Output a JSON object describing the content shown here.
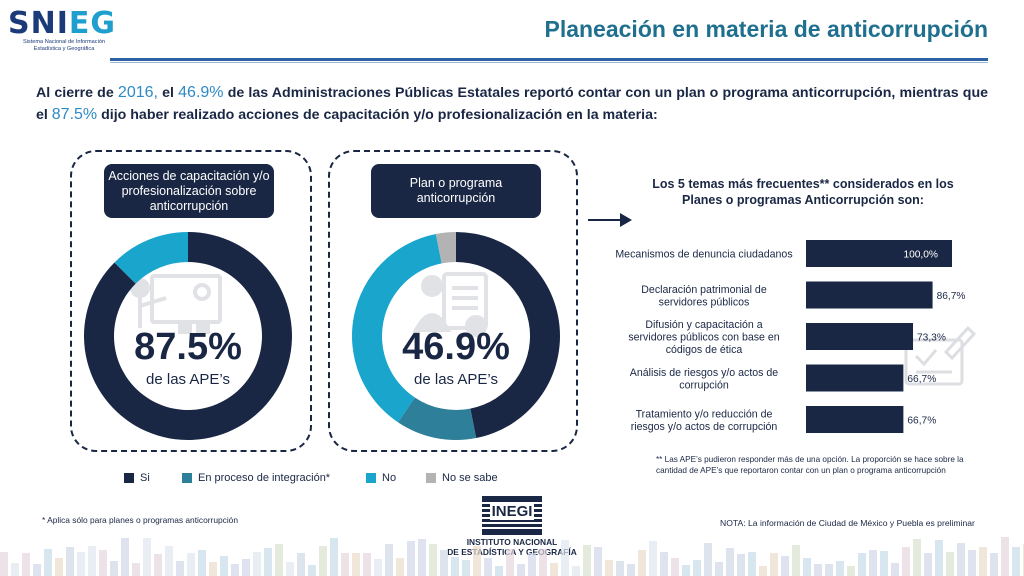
{
  "header": {
    "logo_main": "SNI",
    "logo_accent": "EG",
    "logo_sub": "Sistema Nacional de Información Estadística y Geográfica",
    "title": "Planeación en materia de anticorrupción"
  },
  "intro": {
    "p1": "Al cierre de ",
    "year": "2016,",
    "p2": " el ",
    "pct_plan": "46.9%",
    "p3": " de las Administraciones Públicas Estatales reportó contar con un plan o programa anticorrupción, mientras que el ",
    "pct_cap": "87.5%",
    "p4": " dijo haber realizado acciones de capacitación y/o profesionalización en la materia:"
  },
  "colors": {
    "si": "#1a2744",
    "proceso": "#2e7f99",
    "no": "#19a5cc",
    "no_sabe": "#b3b3b3",
    "bar": "#1a2744"
  },
  "donuts": {
    "capacitacion": {
      "caption": "Acciones de capacitación y/o profesionalización sobre anticorrupción",
      "value_label": "87.5%",
      "sub_label": "de las APE’s",
      "icon": "presentation-icon"
    },
    "plan": {
      "caption": "Plan o programa anticorrupción",
      "value_label": "46.9%",
      "sub_label": "de las APE’s",
      "icon": "document-person-icon"
    }
  },
  "legend": {
    "si": "Si",
    "proceso": "En proceso de integración*",
    "no": "No",
    "no_sabe": "No se sabe"
  },
  "footnote_left": "* Aplica sólo para planes o programas anticorrupción",
  "bar_section": {
    "title": "Los 5 temas más frecuentes** considerados en los Planes o programas Anticorrupción son:",
    "footnote": "** Las APE’s pudieron responder más de una opción. La proporción se hace sobre la cantidad de APE’s que reportaron contar con un plan o programa anticorrupción",
    "icon": "clipboard-pencil-icon"
  },
  "nota": "NOTA: La información de Ciudad de México y Puebla es preliminar",
  "inegi": {
    "logo": "INEGI",
    "line1": "INSTITUTO NACIONAL",
    "line2": "DE ESTADÍSTICA Y GEOGRAFÍA"
  },
  "chart_data": [
    {
      "type": "pie",
      "subtype": "donut",
      "title": "Acciones de capacitación y/o profesionalización sobre anticorrupción",
      "labels": [
        "Si",
        "No"
      ],
      "values": [
        87.5,
        12.5
      ],
      "colors": [
        "#1a2744",
        "#19a5cc"
      ]
    },
    {
      "type": "pie",
      "subtype": "donut",
      "title": "Plan o programa anticorrupción",
      "labels": [
        "Si",
        "En proceso de integración*",
        "No",
        "No se sabe"
      ],
      "values": [
        46.9,
        12.5,
        37.5,
        3.1
      ],
      "colors": [
        "#1a2744",
        "#2e7f99",
        "#19a5cc",
        "#b3b3b3"
      ]
    },
    {
      "type": "bar",
      "orientation": "horizontal",
      "title": "Los 5 temas más frecuentes** considerados en los Planes o programas Anticorrupción son:",
      "categories": [
        "Mecanismos de denuncia ciudadanos",
        "Declaración patrimonial de servidores públicos",
        "Difusión y capacitación a servidores públicos con base en códigos de ética",
        "Análisis de riesgos y/o actos de corrupción",
        "Tratamiento y/o reducción de riesgos y/o actos de corrupción"
      ],
      "values": [
        100.0,
        86.7,
        73.3,
        66.7,
        66.7
      ],
      "value_labels": [
        "100,0%",
        "86,7%",
        "73,3%",
        "66,7%",
        "66,7%"
      ],
      "xlim": [
        0,
        100
      ]
    }
  ]
}
